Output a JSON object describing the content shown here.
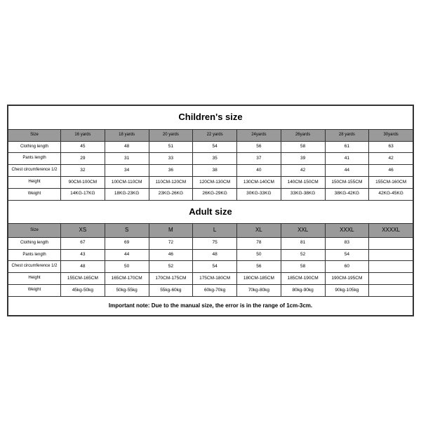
{
  "table": {
    "border_color": "#333333",
    "header_bg": "#9a9a9a",
    "bg": "#ffffff",
    "text_color": "#000000"
  },
  "childrens": {
    "title": "Children's size",
    "row_label_header": "Size",
    "headers": [
      "16 yards",
      "18 yards",
      "20 yards",
      "22 yards",
      "24yards",
      "26yards",
      "28 yards",
      "30yards"
    ],
    "rows": [
      {
        "label": "Clothing length",
        "cells": [
          "45",
          "48",
          "51",
          "54",
          "56",
          "58",
          "61",
          "63"
        ]
      },
      {
        "label": "Pants length",
        "cells": [
          "29",
          "31",
          "33",
          "35",
          "37",
          "39",
          "41",
          "42"
        ]
      },
      {
        "label": "Chest circumference 1/2",
        "cells": [
          "32",
          "34",
          "36",
          "38",
          "40",
          "42",
          "44",
          "46"
        ]
      },
      {
        "label": "Height",
        "cells": [
          "90CM-100CM",
          "100CM-110CM",
          "110CM-120CM",
          "120CM-130CM",
          "130CM-140CM",
          "140CM-150CM",
          "150CM-155CM",
          "155CM-160CM"
        ]
      },
      {
        "label": "Weight",
        "cells": [
          "14KG-17KG",
          "18KG-23KG",
          "23KG-26KG",
          "26KG-29KG",
          "30KG-33KG",
          "33KG-38KG",
          "38KG-42KG",
          "42KG-45KG"
        ]
      }
    ]
  },
  "adult": {
    "title": "Adult size",
    "row_label_header": "Size",
    "headers": [
      "XS",
      "S",
      "M",
      "L",
      "XL",
      "XXL",
      "XXXL",
      "XXXXL"
    ],
    "rows": [
      {
        "label": "Clothing length",
        "cells": [
          "67",
          "69",
          "72",
          "75",
          "78",
          "81",
          "83",
          ""
        ]
      },
      {
        "label": "Pants length",
        "cells": [
          "43",
          "44",
          "46",
          "48",
          "50",
          "52",
          "54",
          ""
        ]
      },
      {
        "label": "Chest circumference 1/2",
        "cells": [
          "48",
          "50",
          "52",
          "54",
          "56",
          "58",
          "60",
          ""
        ]
      },
      {
        "label": "Height",
        "cells": [
          "155CM-165CM",
          "165CM-170CM",
          "170CM-175CM",
          "175CM-180CM",
          "180CM-185CM",
          "185CM-190CM",
          "190CM-195CM",
          ""
        ]
      },
      {
        "label": "Weight",
        "cells": [
          "45kg-50kg",
          "50kg-55kg",
          "55kg-60kg",
          "60kg-70kg",
          "70kg-80kg",
          "80kg-90kg",
          "90kg-105kg",
          ""
        ]
      }
    ]
  },
  "note": "Important note: Due to the manual size, the error is in the range of 1cm-3cm."
}
